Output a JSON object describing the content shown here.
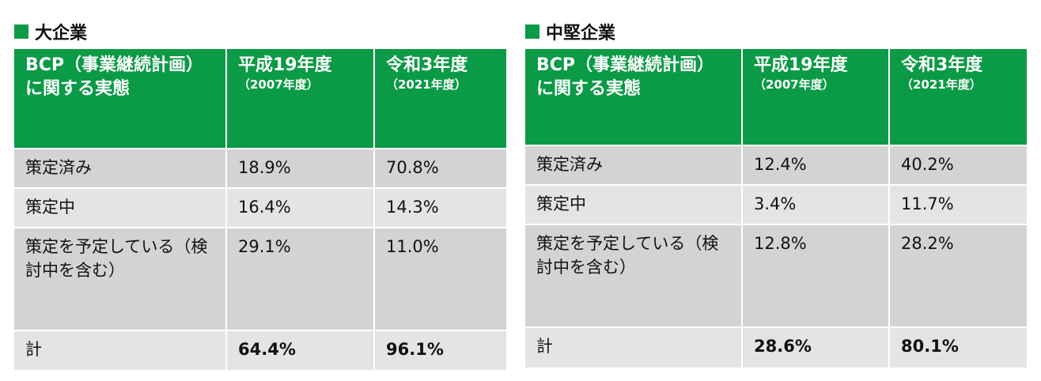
{
  "tables": [
    {
      "title": "大企業",
      "header": [
        {
          "label": "BCP（事業継続計画）に関する実態"
        },
        {
          "label": "平成19年度",
          "sub": "（2007年度）"
        },
        {
          "label": "令和3年度",
          "sub": "（2021年度）"
        }
      ],
      "rows": [
        [
          "策定済み",
          "18.9%",
          "70.8%"
        ],
        [
          "策定中",
          "16.4%",
          "14.3%"
        ],
        [
          "策定を予定している（検討中を含む）",
          "29.1%",
          "11.0%"
        ],
        [
          "計",
          "64.4%",
          "96.1%"
        ]
      ]
    },
    {
      "title": "中堅企業",
      "header": [
        {
          "label": "BCP（事業継続計画）に関する実態"
        },
        {
          "label": "平成19年度",
          "sub": "（2007年度）"
        },
        {
          "label": "令和3年度",
          "sub": "（2021年度）"
        }
      ],
      "rows": [
        [
          "策定済み",
          "12.4%",
          "40.2%"
        ],
        [
          "策定中",
          "3.4%",
          "11.7%"
        ],
        [
          "策定を予定している（検討中を含む）",
          "12.8%",
          "28.2%"
        ],
        [
          "計",
          "28.6%",
          "80.1%"
        ]
      ]
    }
  ]
}
